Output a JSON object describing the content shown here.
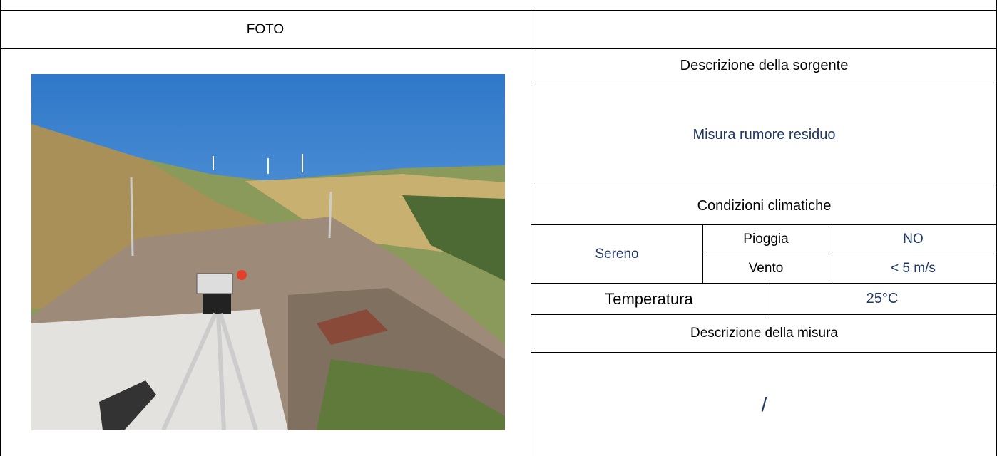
{
  "header": {
    "photo_label": "FOTO"
  },
  "source": {
    "label": "Descrizione della sorgente",
    "value": "Misura rumore residuo"
  },
  "climate": {
    "label": "Condizioni climatiche",
    "sky": "Sereno",
    "rows": [
      [
        "Pioggia",
        "NO"
      ],
      [
        "Vento",
        "< 5 m/s"
      ]
    ]
  },
  "temperature": {
    "label": "Temperatura",
    "value": "25°C"
  },
  "measurement": {
    "label": "Descrizione della misura",
    "value": "/"
  }
}
